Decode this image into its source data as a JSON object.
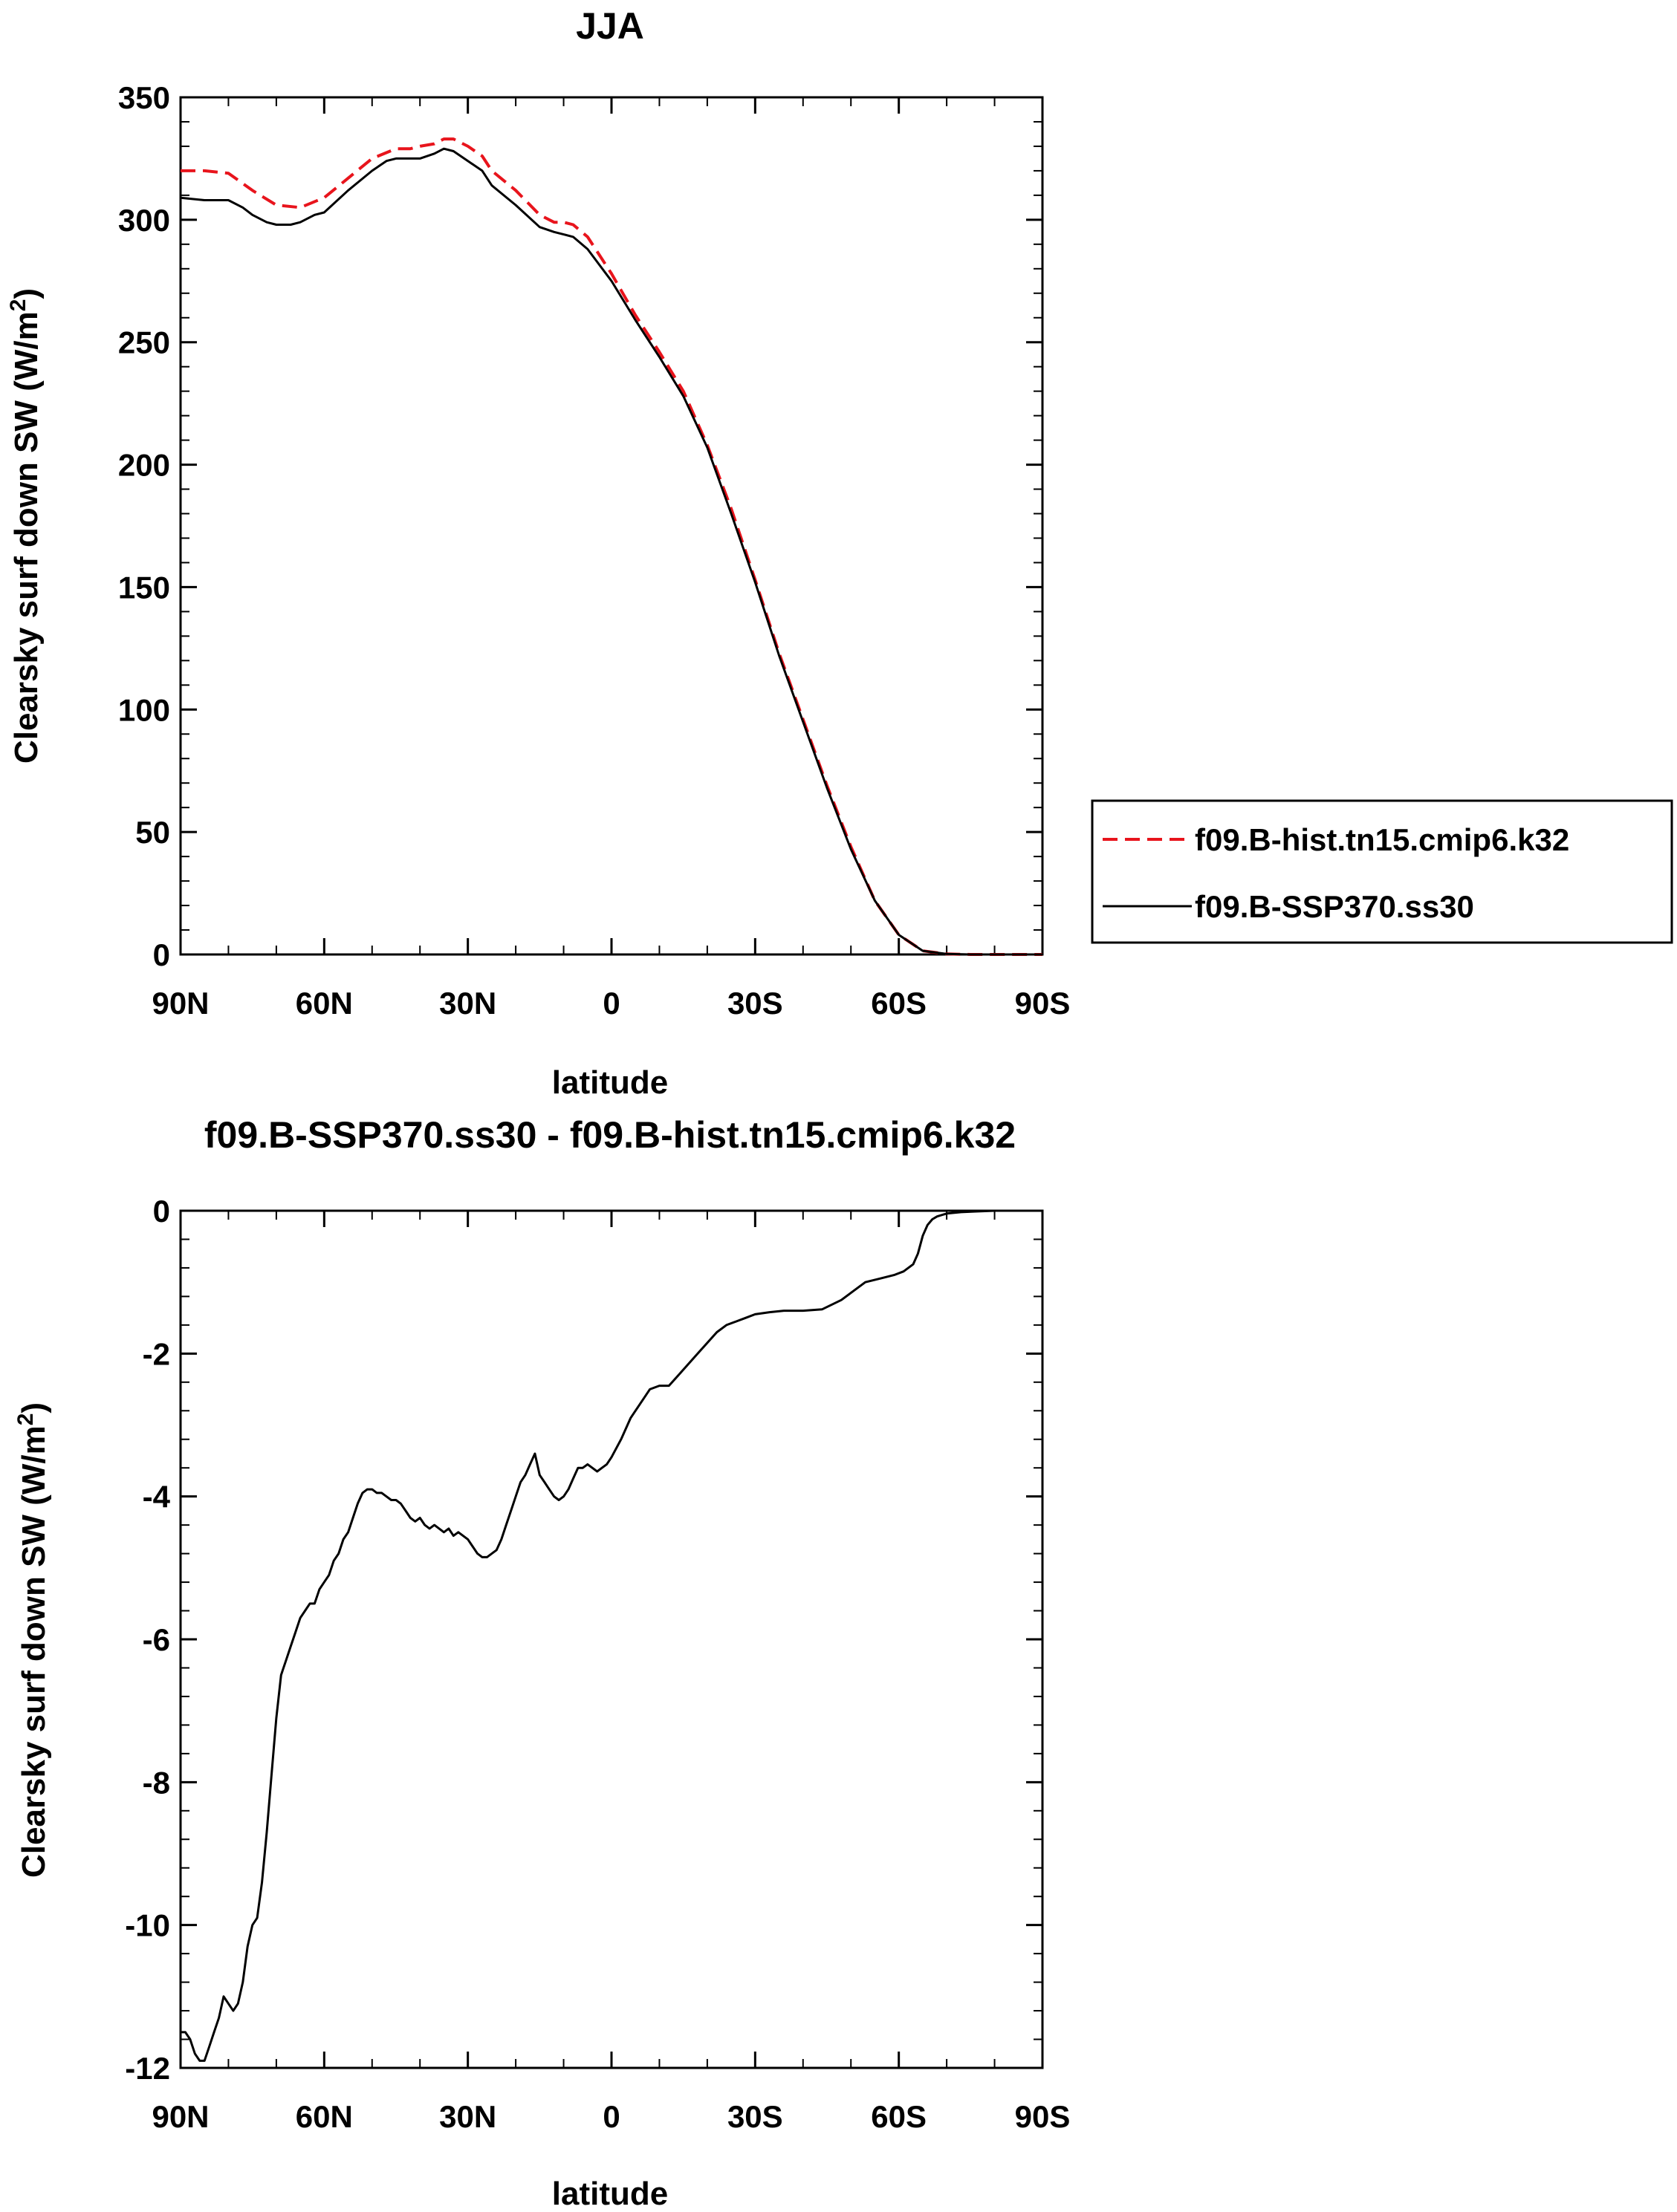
{
  "chart_data": [
    {
      "type": "line",
      "title": "JJA",
      "xlabel": "latitude",
      "ylabel": "Clearsky surf down SW (W/m²)",
      "ylabel_main": "Clearsky surf down SW (W/m",
      "ylabel_sup": "2",
      "ylabel_close": ")",
      "xlim": [
        90,
        -90
      ],
      "ylim": [
        0,
        350
      ],
      "x_ticks": [
        90,
        60,
        30,
        0,
        -30,
        -60,
        -90
      ],
      "x_tick_labels": [
        "90N",
        "60N",
        "30N",
        "0",
        "30S",
        "60S",
        "90S"
      ],
      "y_ticks": [
        0,
        50,
        100,
        150,
        200,
        250,
        300,
        350
      ],
      "y_tick_labels": [
        "0",
        "50",
        "100",
        "150",
        "200",
        "250",
        "300",
        "350"
      ],
      "legend_position": "right",
      "series": [
        {
          "name": "f09.B-hist.tn15.cmip6.k32",
          "color": "#e8141c",
          "style": "dashed",
          "x": [
            90,
            85,
            80,
            75,
            70,
            65,
            60,
            55,
            50,
            45,
            42,
            40,
            37,
            35,
            33,
            30,
            27,
            25,
            20,
            15,
            12,
            10,
            8,
            5,
            0,
            -5,
            -10,
            -15,
            -20,
            -25,
            -30,
            -35,
            -40,
            -45,
            -50,
            -55,
            -60,
            -65,
            -70,
            -75,
            -80,
            -85,
            -90
          ],
          "y": [
            320,
            320,
            319,
            312,
            306,
            305,
            309,
            317,
            325,
            329,
            329,
            330,
            331,
            333,
            333,
            330,
            326,
            320,
            312,
            302,
            299,
            299,
            298,
            293,
            278,
            261,
            246,
            230,
            208,
            182,
            153,
            123,
            96,
            69,
            44,
            22,
            8,
            1.5,
            0.2,
            0,
            0,
            0,
            0
          ]
        },
        {
          "name": "f09.B-SSP370.ss30",
          "color": "#000000",
          "style": "solid",
          "x": [
            90,
            85,
            80,
            77,
            75,
            72,
            70,
            67,
            65,
            62,
            60,
            55,
            50,
            47,
            45,
            42,
            40,
            37,
            35,
            33,
            30,
            27,
            25,
            20,
            15,
            12,
            10,
            8,
            5,
            0,
            -5,
            -10,
            -15,
            -20,
            -25,
            -30,
            -35,
            -40,
            -45,
            -50,
            -55,
            -60,
            -65,
            -70,
            -75,
            -80,
            -85,
            -90
          ],
          "y": [
            309,
            308,
            308,
            305,
            302,
            299,
            298,
            298,
            299,
            302,
            303,
            312,
            320,
            324,
            325,
            325,
            325,
            327,
            329,
            328,
            324,
            320,
            314,
            306,
            297,
            295,
            294,
            293,
            288,
            275,
            259,
            244,
            228,
            207,
            180,
            152,
            122,
            95,
            68,
            43,
            22,
            8,
            1.5,
            0.2,
            0,
            0,
            0,
            0
          ]
        }
      ]
    },
    {
      "type": "line",
      "title": "f09.B-SSP370.ss30 - f09.B-hist.tn15.cmip6.k32",
      "xlabel": "latitude",
      "ylabel": "Clearsky surf down SW (W/m²)",
      "ylabel_main": "Clearsky surf down SW (W/m",
      "ylabel_sup": "2",
      "ylabel_close": ")",
      "xlim": [
        90,
        -90
      ],
      "ylim": [
        -12,
        0
      ],
      "x_ticks": [
        90,
        60,
        30,
        0,
        -30,
        -60,
        -90
      ],
      "x_tick_labels": [
        "90N",
        "60N",
        "30N",
        "0",
        "30S",
        "60S",
        "90S"
      ],
      "y_ticks": [
        -12,
        -10,
        -8,
        -6,
        -4,
        -2,
        0
      ],
      "y_tick_labels": [
        "-12",
        "-10",
        "-8",
        "-6",
        "-4",
        "-2",
        "0"
      ],
      "series": [
        {
          "name": "f09.B-SSP370.ss30 - f09.B-hist.tn15.cmip6.k32",
          "color": "#000000",
          "style": "solid",
          "x": [
            90,
            89,
            88,
            87,
            86,
            85,
            84,
            83,
            82,
            81,
            80,
            79,
            78,
            77,
            76,
            75,
            74,
            73,
            72,
            71,
            70,
            69,
            68,
            67,
            66,
            65,
            64,
            63,
            62,
            61,
            60,
            59,
            58,
            57,
            56,
            55,
            54,
            53,
            52,
            51,
            50,
            49,
            48,
            47,
            46,
            45,
            44,
            43,
            42,
            41,
            40,
            39,
            38,
            37,
            36,
            35,
            34,
            33,
            32,
            31,
            30,
            29,
            28,
            27,
            26,
            25,
            24,
            23,
            22,
            21,
            20,
            19,
            18,
            17,
            16,
            15,
            14,
            13,
            12,
            11,
            10,
            9,
            8,
            7,
            6,
            5,
            4,
            3,
            2,
            1,
            0,
            -2,
            -4,
            -6,
            -8,
            -10,
            -12,
            -14,
            -16,
            -18,
            -20,
            -22,
            -24,
            -26,
            -28,
            -30,
            -33,
            -36,
            -40,
            -44,
            -48,
            -50,
            -53,
            -56,
            -59,
            -61,
            -63,
            -64,
            -65,
            -66,
            -67,
            -68,
            -70,
            -73,
            -76,
            -80,
            -85,
            -90
          ],
          "y": [
            -11.5,
            -11.5,
            -11.6,
            -11.8,
            -11.9,
            -11.9,
            -11.7,
            -11.5,
            -11.3,
            -11.0,
            -11.1,
            -11.2,
            -11.1,
            -10.8,
            -10.3,
            -10.0,
            -9.9,
            -9.4,
            -8.7,
            -7.9,
            -7.1,
            -6.5,
            -6.3,
            -6.1,
            -5.9,
            -5.7,
            -5.6,
            -5.5,
            -5.5,
            -5.3,
            -5.2,
            -5.1,
            -4.9,
            -4.8,
            -4.6,
            -4.5,
            -4.3,
            -4.1,
            -3.95,
            -3.9,
            -3.9,
            -3.95,
            -3.95,
            -4.0,
            -4.05,
            -4.05,
            -4.1,
            -4.2,
            -4.3,
            -4.35,
            -4.3,
            -4.4,
            -4.45,
            -4.4,
            -4.45,
            -4.5,
            -4.45,
            -4.55,
            -4.5,
            -4.55,
            -4.6,
            -4.7,
            -4.8,
            -4.85,
            -4.85,
            -4.8,
            -4.75,
            -4.6,
            -4.4,
            -4.2,
            -4.0,
            -3.8,
            -3.7,
            -3.55,
            -3.4,
            -3.7,
            -3.8,
            -3.9,
            -4.0,
            -4.05,
            -4.0,
            -3.9,
            -3.75,
            -3.6,
            -3.6,
            -3.55,
            -3.6,
            -3.65,
            -3.6,
            -3.55,
            -3.45,
            -3.2,
            -2.9,
            -2.7,
            -2.5,
            -2.45,
            -2.45,
            -2.3,
            -2.15,
            -2.0,
            -1.85,
            -1.7,
            -1.6,
            -1.55,
            -1.5,
            -1.45,
            -1.42,
            -1.4,
            -1.4,
            -1.38,
            -1.25,
            -1.15,
            -1.0,
            -0.95,
            -0.9,
            -0.85,
            -0.75,
            -0.6,
            -0.35,
            -0.2,
            -0.12,
            -0.08,
            -0.04,
            -0.02,
            -0.01,
            0,
            0,
            0
          ]
        }
      ]
    }
  ]
}
